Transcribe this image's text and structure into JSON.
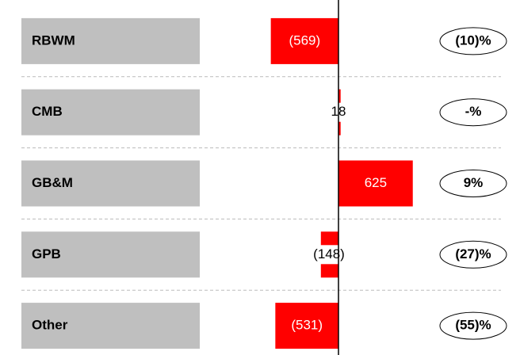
{
  "chart_data": {
    "type": "bar",
    "orientation": "horizontal",
    "categories": [
      "RBWM",
      "CMB",
      "GB&M",
      "GPB",
      "Other"
    ],
    "values": [
      -569,
      18,
      625,
      -148,
      -531
    ],
    "value_labels": [
      "(569)",
      "18",
      "625",
      "(148)",
      "(531)"
    ],
    "percent_labels": [
      "(10)%",
      "-%",
      "9%",
      "(27)%",
      "(55)%"
    ],
    "color": "#ff0000",
    "category_box_color": "#bfbfbf",
    "xlim": [
      -800,
      800
    ]
  }
}
